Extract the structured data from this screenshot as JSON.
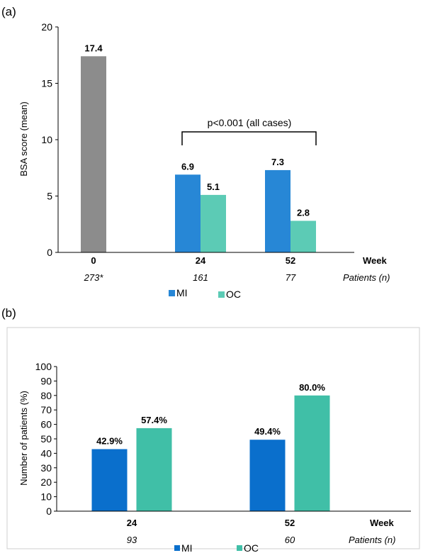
{
  "figure": {
    "panel_a_label": "(a)",
    "panel_b_label": "(b)"
  },
  "chart_data": [
    {
      "type": "bar",
      "ylabel": "BSA score (mean)",
      "ylim": [
        0,
        20
      ],
      "yticks": [
        0,
        5,
        10,
        15,
        20
      ],
      "x_axis_label": "Week",
      "patients_label": "Patients (n)",
      "categories": [
        "0",
        "24",
        "52"
      ],
      "patients": [
        "273*",
        "161",
        "77"
      ],
      "series": [
        {
          "name": "",
          "color": "#8c8c8c",
          "values": [
            17.4,
            null,
            null
          ],
          "labels": [
            "17.4",
            "",
            ""
          ]
        },
        {
          "name": "MI",
          "color": "#2787d6",
          "values": [
            null,
            6.9,
            7.3
          ],
          "labels": [
            "",
            "6.9",
            "7.3"
          ]
        },
        {
          "name": "OC",
          "color": "#5ccbb5",
          "values": [
            null,
            5.1,
            2.8
          ],
          "labels": [
            "",
            "5.1",
            "2.8"
          ]
        }
      ],
      "legend": [
        "MI",
        "OC"
      ],
      "legend_position": "bottom",
      "annotation": "p<0.001 (all cases)",
      "grid": false
    },
    {
      "type": "bar",
      "ylabel": "Number of patients (%)",
      "ylim": [
        0,
        100
      ],
      "yticks": [
        0,
        10,
        20,
        30,
        40,
        50,
        60,
        70,
        80,
        90,
        100
      ],
      "x_axis_label": "Week",
      "patients_label": "Patients (n)",
      "categories": [
        "24",
        "52"
      ],
      "patients": [
        "93",
        "60"
      ],
      "series": [
        {
          "name": "MI",
          "color": "#0a6fcc",
          "values": [
            42.9,
            49.4
          ],
          "labels": [
            "42.9%",
            "49.4%"
          ]
        },
        {
          "name": "OC",
          "color": "#40bfa7",
          "values": [
            57.4,
            80.0
          ],
          "labels": [
            "57.4%",
            "80.0%"
          ]
        }
      ],
      "legend": [
        "MI",
        "OC"
      ],
      "legend_position": "bottom",
      "grid": false
    }
  ]
}
